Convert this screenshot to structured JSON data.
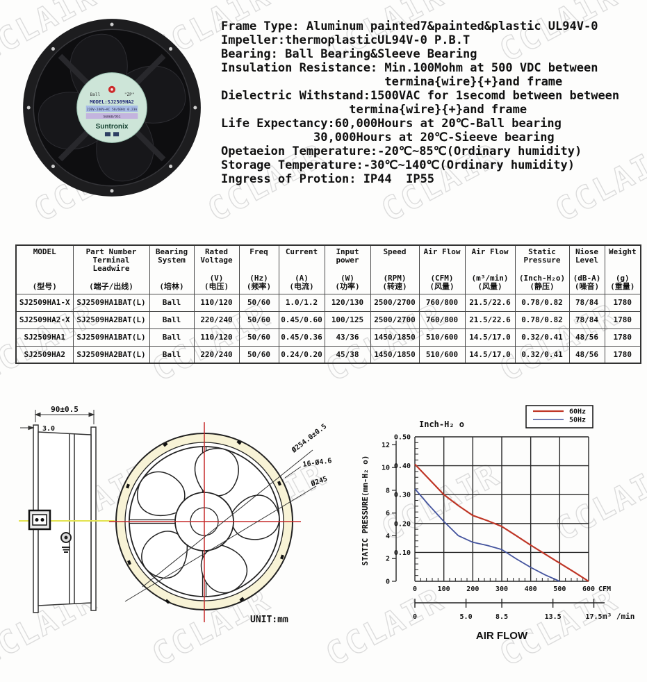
{
  "watermark": {
    "text": "CCLAIR",
    "color": "#dcdcdc"
  },
  "fan_photo": {
    "label_left": "Ball",
    "label_right": "\"ZP\"",
    "label_model": "MODEL:SJ2509HA2",
    "label_ratings": "220V-240V~AC 50/60Hz 0.23A",
    "label_serial": "56060/951",
    "label_brand": "Suntronix"
  },
  "specs": {
    "lines": [
      "Frame Type: Aluminum painted7&painted&plastic UL94V-0",
      "Impeller:thermoplasticUL94V-0 P.B.T",
      "Bearing: Ball Bearing&Sleeve Bearing",
      "Insulation Resistance: Min.100Mohm at 500 VDC between",
      "                       termina{wire}{+}and frame",
      "Dielectric Withstand:1500VAC for 1secomd between between",
      "                  termina{wire}{+}and frame",
      "Life Expectancy:60,000Hours at 20℃-Ball bearing",
      "             30,000Hours at 20℃-Sieeve bearing",
      "Opetaeion Temperature:-20℃~85℃(Ordinary humidity)",
      "Storage Temperature:-30℃~140℃(Ordinary humidity)",
      "Ingress of Protion: IP44  IP55"
    ]
  },
  "table": {
    "columns": [
      {
        "en": [
          "MODEL"
        ],
        "unit": "",
        "cn": "(型号)"
      },
      {
        "en": [
          "Part Number",
          "Terminal",
          "Leadwire"
        ],
        "unit": "",
        "cn": "(端子/出线)"
      },
      {
        "en": [
          "Bearing",
          "System"
        ],
        "unit": "",
        "cn": "(培林)"
      },
      {
        "en": [
          "Rated",
          "Voltage"
        ],
        "unit": "(V)",
        "cn": "(电压)"
      },
      {
        "en": [
          "Freq"
        ],
        "unit": "(Hz)",
        "cn": "(频率)"
      },
      {
        "en": [
          "Current"
        ],
        "unit": "(A)",
        "cn": "(电流)"
      },
      {
        "en": [
          "Input",
          "power"
        ],
        "unit": "(W)",
        "cn": "(功率)"
      },
      {
        "en": [
          "Speed"
        ],
        "unit": "(RPM)",
        "cn": "(转速)"
      },
      {
        "en": [
          "Air Flow"
        ],
        "unit": "(CFM)",
        "cn": "(风量)"
      },
      {
        "en": [
          "Air Flow"
        ],
        "unit": "(m³/min)",
        "cn": "(风量)"
      },
      {
        "en": [
          "Static",
          "Pressure"
        ],
        "unit": "(Inch-H₂o)",
        "cn": "(静压)"
      },
      {
        "en": [
          "Niose",
          "Level"
        ],
        "unit": "(dB-A)",
        "cn": "(噪音)"
      },
      {
        "en": [
          "Weight"
        ],
        "unit": "(g)",
        "cn": "(重量)"
      }
    ],
    "rows": [
      [
        "SJ2509HA1-X",
        "SJ2509HA1BAT(L)",
        "Ball",
        "110/120",
        "50/60",
        "1.0/1.2",
        "120/130",
        "2500/2700",
        "760/800",
        "21.5/22.6",
        "0.78/0.82",
        "78/84",
        "1780"
      ],
      [
        "SJ2509HA2-X",
        "SJ2509HA2BAT(L)",
        "Ball",
        "220/240",
        "50/60",
        "0.45/0.60",
        "100/125",
        "2500/2700",
        "760/800",
        "21.5/22.6",
        "0.78/0.82",
        "78/84",
        "1780"
      ],
      [
        "SJ2509HA1",
        "SJ2509HA1BAT(L)",
        "Ball",
        "110/120",
        "50/60",
        "0.45/0.36",
        "43/36",
        "1450/1850",
        "510/600",
        "14.5/17.0",
        "0.32/0.41",
        "48/56",
        "1780"
      ],
      [
        "SJ2509HA2",
        "SJ2509HA2BAT(L)",
        "Ball",
        "220/240",
        "50/60",
        "0.24/0.20",
        "45/38",
        "1450/1850",
        "510/600",
        "14.5/17.0",
        "0.32/0.41",
        "48/56",
        "1780"
      ]
    ]
  },
  "drawing": {
    "dim_width": "90±0.5",
    "dim_thickness": "3.0",
    "callout_outer_dia": "Ø254.0±0.5",
    "callout_holes": "16-Ø4.6",
    "callout_circle_dia": "Ø245",
    "unit_note": "UNIT:mm"
  },
  "chart_data": {
    "type": "line",
    "xlabel": "AIR FLOW",
    "ylabel_outer": "STATIC PRESSURE(mm-H₂ o)",
    "ylabel_inner": "Inch-H₂ o",
    "x_axis_unit": "CFM",
    "x2_axis_unit": "m³ /min",
    "x_ticks_cfm": [
      0,
      100,
      200,
      300,
      400,
      500,
      600
    ],
    "x2_ticks": [
      "0",
      "5.0",
      "8.5",
      "13.5",
      "17.5"
    ],
    "x2_values": [
      0,
      5.0,
      8.5,
      13.5,
      17.5
    ],
    "y_ticks_inch": [
      "0.50",
      "0.40",
      "0.30",
      "0.20",
      "0.10"
    ],
    "y_tick_values_inch": [
      0.5,
      0.4,
      0.3,
      0.2,
      0.1
    ],
    "y_ticks_mm": [
      12,
      10,
      8,
      6,
      4,
      2,
      0
    ],
    "xlim_cfm": [
      0,
      600
    ],
    "ylim_inch": [
      0,
      0.5
    ],
    "grid": true,
    "legend_position": "top-right",
    "series": [
      {
        "name": "60Hz",
        "color": "#bf3626",
        "x": [
          0,
          50,
          100,
          150,
          200,
          250,
          300,
          350,
          400,
          450,
          500,
          550,
          600
        ],
        "y": [
          0.405,
          0.353,
          0.3,
          0.262,
          0.228,
          0.21,
          0.19,
          0.158,
          0.125,
          0.094,
          0.063,
          0.032,
          0.0
        ]
      },
      {
        "name": "50Hz",
        "color": "#44549e",
        "x": [
          0,
          50,
          100,
          150,
          200,
          250,
          300,
          350,
          400,
          450,
          500
        ],
        "y": [
          0.32,
          0.262,
          0.207,
          0.158,
          0.135,
          0.124,
          0.11,
          0.078,
          0.048,
          0.022,
          0.0
        ]
      }
    ]
  }
}
